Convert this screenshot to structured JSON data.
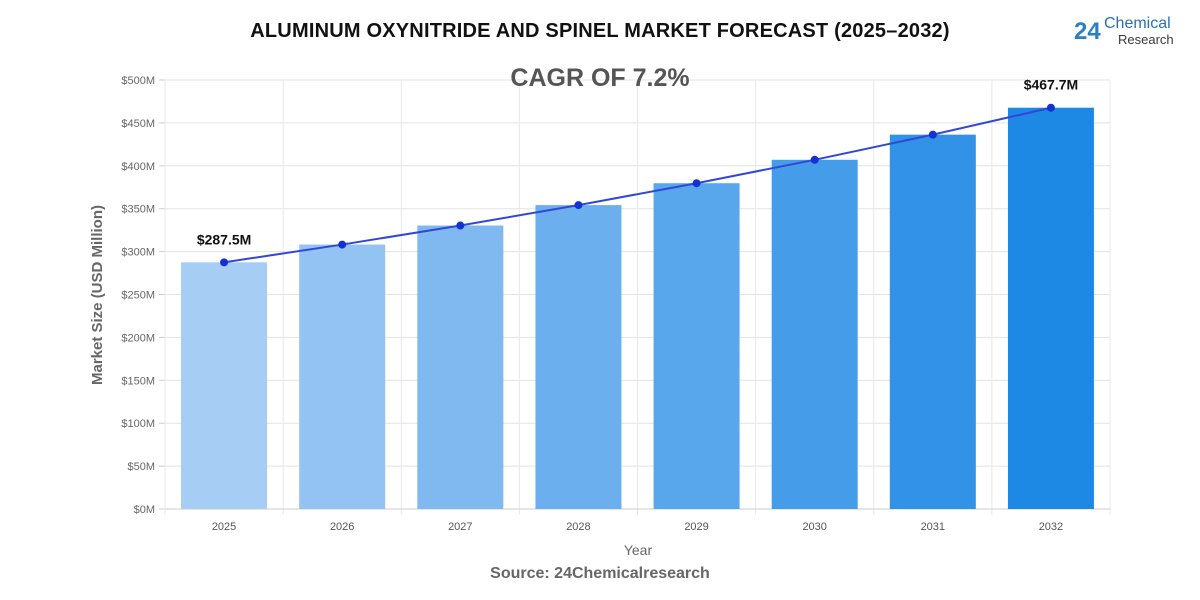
{
  "logo": {
    "number": "24",
    "line1": "Chemical",
    "line2": "Research"
  },
  "source": "Source: 24Chemicalresearch",
  "chart_data": {
    "type": "bar",
    "title": "ALUMINUM OXYNITRIDE AND SPINEL MARKET FORECAST (2025–2032)",
    "annotation": "CAGR OF 7.2%",
    "xlabel": "Year",
    "ylabel": "Market Size (USD Million)",
    "categories": [
      "2025",
      "2026",
      "2027",
      "2028",
      "2029",
      "2030",
      "2031",
      "2032"
    ],
    "values": [
      287.5,
      308.2,
      330.4,
      354.2,
      379.7,
      407.0,
      436.3,
      467.7
    ],
    "trend_line": true,
    "data_labels": [
      {
        "index": 0,
        "text": "$287.5M"
      },
      {
        "index": 7,
        "text": "$467.7M"
      }
    ],
    "ylim": [
      0,
      500
    ],
    "yticks": [
      0,
      50,
      100,
      150,
      200,
      250,
      300,
      350,
      400,
      450,
      500
    ],
    "ytick_labels": [
      "$0M",
      "$50M",
      "$100M",
      "$150M",
      "$200M",
      "$250M",
      "$300M",
      "$350M",
      "$400M",
      "$450M",
      "$500M"
    ],
    "grid": true,
    "colors": {
      "bar_start": "#a6cdf4",
      "bar_end": "#1e88e5",
      "line": "#3347d6",
      "point": "#1431d4"
    }
  }
}
